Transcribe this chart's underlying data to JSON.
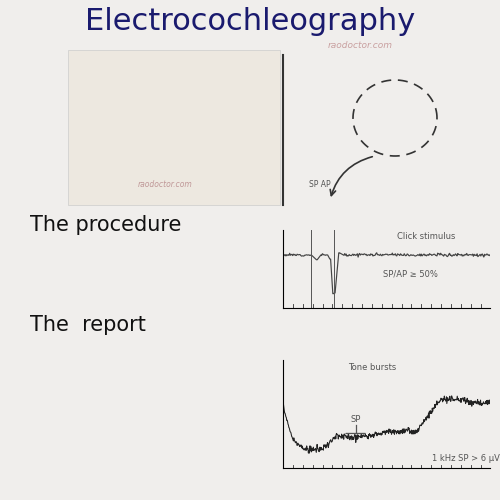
{
  "title": "Electrocochleography",
  "title_color": "#1a1a6e",
  "title_fontsize": 22,
  "watermark": "raodoctor.com",
  "watermark_color": "#c9a0a0",
  "bg_color": "#f0eeec",
  "procedure_label": "The procedure",
  "report_label": "The  report",
  "label_fontsize": 15,
  "label_color": "#111111",
  "click_label": "Click stimulus",
  "sp_ap_label": "SP/AP ≥ 50%",
  "sp_ap_axis_label": "SP AP",
  "tone_label": "Tone bursts",
  "sp_label": "SP",
  "khz_label": "1 kHz SP > 6 μV",
  "ear_wm": "raodoctor.com",
  "wm2_color": "#c9a0a0"
}
